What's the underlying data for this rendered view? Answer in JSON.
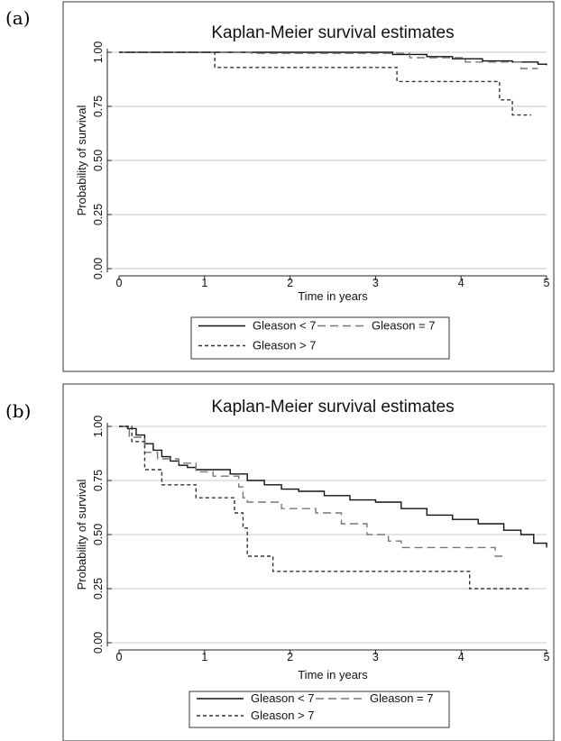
{
  "chart_data": [
    {
      "panel_label": "(a)",
      "type": "line",
      "title": "Kaplan-Meier survival estimates",
      "xlabel": "Time in years",
      "ylabel": "Probability of survival",
      "xlim": [
        0,
        5
      ],
      "ylim": [
        0,
        1
      ],
      "x_ticks": [
        "0",
        "1",
        "2",
        "3",
        "4",
        "5"
      ],
      "y_ticks": [
        "0.00",
        "0.25",
        "0.50",
        "0.75",
        "1.00"
      ],
      "grid": true,
      "legend_position": "bottom",
      "series": [
        {
          "name": "Gleason < 7",
          "style": "solid",
          "color": "#111111",
          "x": [
            0,
            3.2,
            3.6,
            3.9,
            4.25,
            4.6,
            4.9,
            5.0
          ],
          "y": [
            1.0,
            0.99,
            0.98,
            0.97,
            0.96,
            0.955,
            0.945,
            0.94
          ]
        },
        {
          "name": "Gleason = 7",
          "style": "longdash",
          "color": "#777777",
          "x": [
            0,
            1.55,
            3.4,
            4.05,
            4.7,
            4.9
          ],
          "y": [
            1.0,
            0.995,
            0.975,
            0.955,
            0.925,
            0.925
          ]
        },
        {
          "name": "Gleason > 7",
          "style": "shortdash",
          "color": "#333333",
          "x": [
            0,
            1.12,
            3.25,
            4.45,
            4.6,
            4.82
          ],
          "y": [
            1.0,
            0.93,
            0.865,
            0.78,
            0.71,
            0.71
          ]
        }
      ]
    },
    {
      "panel_label": "(b)",
      "type": "line",
      "title": "Kaplan-Meier survival estimates",
      "xlabel": "Time in years",
      "ylabel": "Probability of survival",
      "xlim": [
        0,
        5
      ],
      "ylim": [
        0,
        1
      ],
      "x_ticks": [
        "0",
        "1",
        "2",
        "3",
        "4",
        "5"
      ],
      "y_ticks": [
        "0.00",
        "0.25",
        "0.50",
        "0.75",
        "1.00"
      ],
      "grid": true,
      "legend_position": "bottom",
      "series": [
        {
          "name": "Gleason < 7",
          "style": "solid",
          "color": "#111111",
          "x": [
            0,
            0.1,
            0.2,
            0.3,
            0.4,
            0.5,
            0.6,
            0.7,
            0.8,
            0.9,
            1.0,
            1.3,
            1.5,
            1.7,
            1.9,
            2.1,
            2.4,
            2.7,
            3.0,
            3.3,
            3.6,
            3.9,
            4.2,
            4.5,
            4.7,
            4.85,
            5.0
          ],
          "y": [
            1.0,
            0.99,
            0.96,
            0.92,
            0.89,
            0.86,
            0.84,
            0.82,
            0.81,
            0.8,
            0.8,
            0.78,
            0.75,
            0.73,
            0.71,
            0.7,
            0.68,
            0.66,
            0.65,
            0.62,
            0.59,
            0.57,
            0.55,
            0.52,
            0.5,
            0.46,
            0.44
          ]
        },
        {
          "name": "Gleason = 7",
          "style": "longdash",
          "color": "#777777",
          "x": [
            0,
            0.12,
            0.3,
            0.45,
            0.7,
            0.9,
            1.1,
            1.4,
            1.45,
            1.5,
            1.9,
            2.3,
            2.6,
            2.9,
            3.15,
            3.3,
            4.4,
            4.5
          ],
          "y": [
            1.0,
            0.95,
            0.88,
            0.85,
            0.83,
            0.79,
            0.77,
            0.72,
            0.67,
            0.65,
            0.62,
            0.6,
            0.55,
            0.5,
            0.47,
            0.44,
            0.4,
            0.4
          ]
        },
        {
          "name": "Gleason > 7",
          "style": "shortdash",
          "color": "#333333",
          "x": [
            0,
            0.15,
            0.3,
            0.5,
            0.9,
            1.35,
            1.45,
            1.5,
            1.8,
            4.1,
            4.8
          ],
          "y": [
            1.0,
            0.93,
            0.8,
            0.73,
            0.67,
            0.6,
            0.53,
            0.4,
            0.33,
            0.25,
            0.25
          ]
        }
      ]
    }
  ]
}
